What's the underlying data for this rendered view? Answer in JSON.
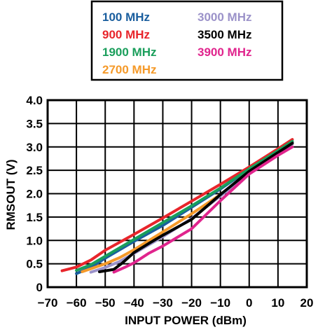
{
  "chart_data": {
    "type": "line",
    "xlabel": "INPUT POWER (dBm)",
    "ylabel": "RMSOUT (V)",
    "xlim": [
      -70,
      20
    ],
    "ylim": [
      0,
      4.0
    ],
    "x_ticks": [
      "−70",
      "−60",
      "−50",
      "−40",
      "−30",
      "−20",
      "−10",
      "0",
      "10",
      "20"
    ],
    "y_ticks": [
      "0",
      "0.5",
      "1.0",
      "1.5",
      "2.0",
      "2.5",
      "3.0",
      "3.5",
      "4.0"
    ],
    "grid": true,
    "legend_position": "top",
    "series": [
      {
        "name": "100 MHz",
        "color": "#1a5e9e",
        "points": [
          [
            -60,
            0.29
          ],
          [
            -55,
            0.42
          ],
          [
            -50,
            0.62
          ],
          [
            -40,
            0.98
          ],
          [
            -30,
            1.32
          ],
          [
            -20,
            1.71
          ],
          [
            -10,
            2.1
          ],
          [
            0,
            2.52
          ],
          [
            10,
            2.92
          ],
          [
            15,
            3.1
          ]
        ]
      },
      {
        "name": "900 MHz",
        "color": "#e8252b",
        "points": [
          [
            -65,
            0.35
          ],
          [
            -60,
            0.43
          ],
          [
            -55,
            0.58
          ],
          [
            -50,
            0.79
          ],
          [
            -40,
            1.13
          ],
          [
            -30,
            1.48
          ],
          [
            -20,
            1.84
          ],
          [
            -10,
            2.2
          ],
          [
            0,
            2.57
          ],
          [
            10,
            2.96
          ],
          [
            15,
            3.16
          ]
        ]
      },
      {
        "name": "1900 MHz",
        "color": "#1a9e5b",
        "points": [
          [
            -60,
            0.36
          ],
          [
            -55,
            0.48
          ],
          [
            -50,
            0.66
          ],
          [
            -40,
            1.02
          ],
          [
            -30,
            1.38
          ],
          [
            -20,
            1.74
          ],
          [
            -10,
            2.12
          ],
          [
            0,
            2.53
          ],
          [
            10,
            2.92
          ],
          [
            15,
            3.12
          ]
        ]
      },
      {
        "name": "2700 MHz",
        "color": "#f59a2a",
        "points": [
          [
            -58,
            0.33
          ],
          [
            -50,
            0.5
          ],
          [
            -45,
            0.63
          ],
          [
            -40,
            0.8
          ],
          [
            -30,
            1.18
          ],
          [
            -20,
            1.57
          ],
          [
            -10,
            1.98
          ],
          [
            0,
            2.46
          ],
          [
            10,
            2.86
          ],
          [
            15,
            3.06
          ]
        ]
      },
      {
        "name": "3000 MHz",
        "color": "#9b92c9",
        "points": [
          [
            -55,
            0.32
          ],
          [
            -50,
            0.42
          ],
          [
            -45,
            0.55
          ],
          [
            -40,
            0.72
          ],
          [
            -30,
            1.08
          ],
          [
            -20,
            1.47
          ],
          [
            -10,
            1.95
          ],
          [
            0,
            2.45
          ],
          [
            10,
            2.86
          ],
          [
            15,
            3.06
          ]
        ]
      },
      {
        "name": "3500 MHz",
        "color": "#000000",
        "points": [
          [
            -52,
            0.33
          ],
          [
            -47,
            0.38
          ],
          [
            -44,
            0.52
          ],
          [
            -40,
            0.74
          ],
          [
            -35,
            0.93
          ],
          [
            -30,
            1.11
          ],
          [
            -20,
            1.45
          ],
          [
            -10,
            1.98
          ],
          [
            0,
            2.48
          ],
          [
            10,
            2.88
          ],
          [
            15,
            3.08
          ]
        ]
      },
      {
        "name": "3900 MHz",
        "color": "#e0248d",
        "points": [
          [
            -47,
            0.32
          ],
          [
            -43,
            0.43
          ],
          [
            -40,
            0.52
          ],
          [
            -35,
            0.72
          ],
          [
            -30,
            0.88
          ],
          [
            -20,
            1.25
          ],
          [
            -10,
            1.85
          ],
          [
            0,
            2.42
          ],
          [
            10,
            2.82
          ],
          [
            15,
            3.0
          ]
        ]
      }
    ]
  }
}
